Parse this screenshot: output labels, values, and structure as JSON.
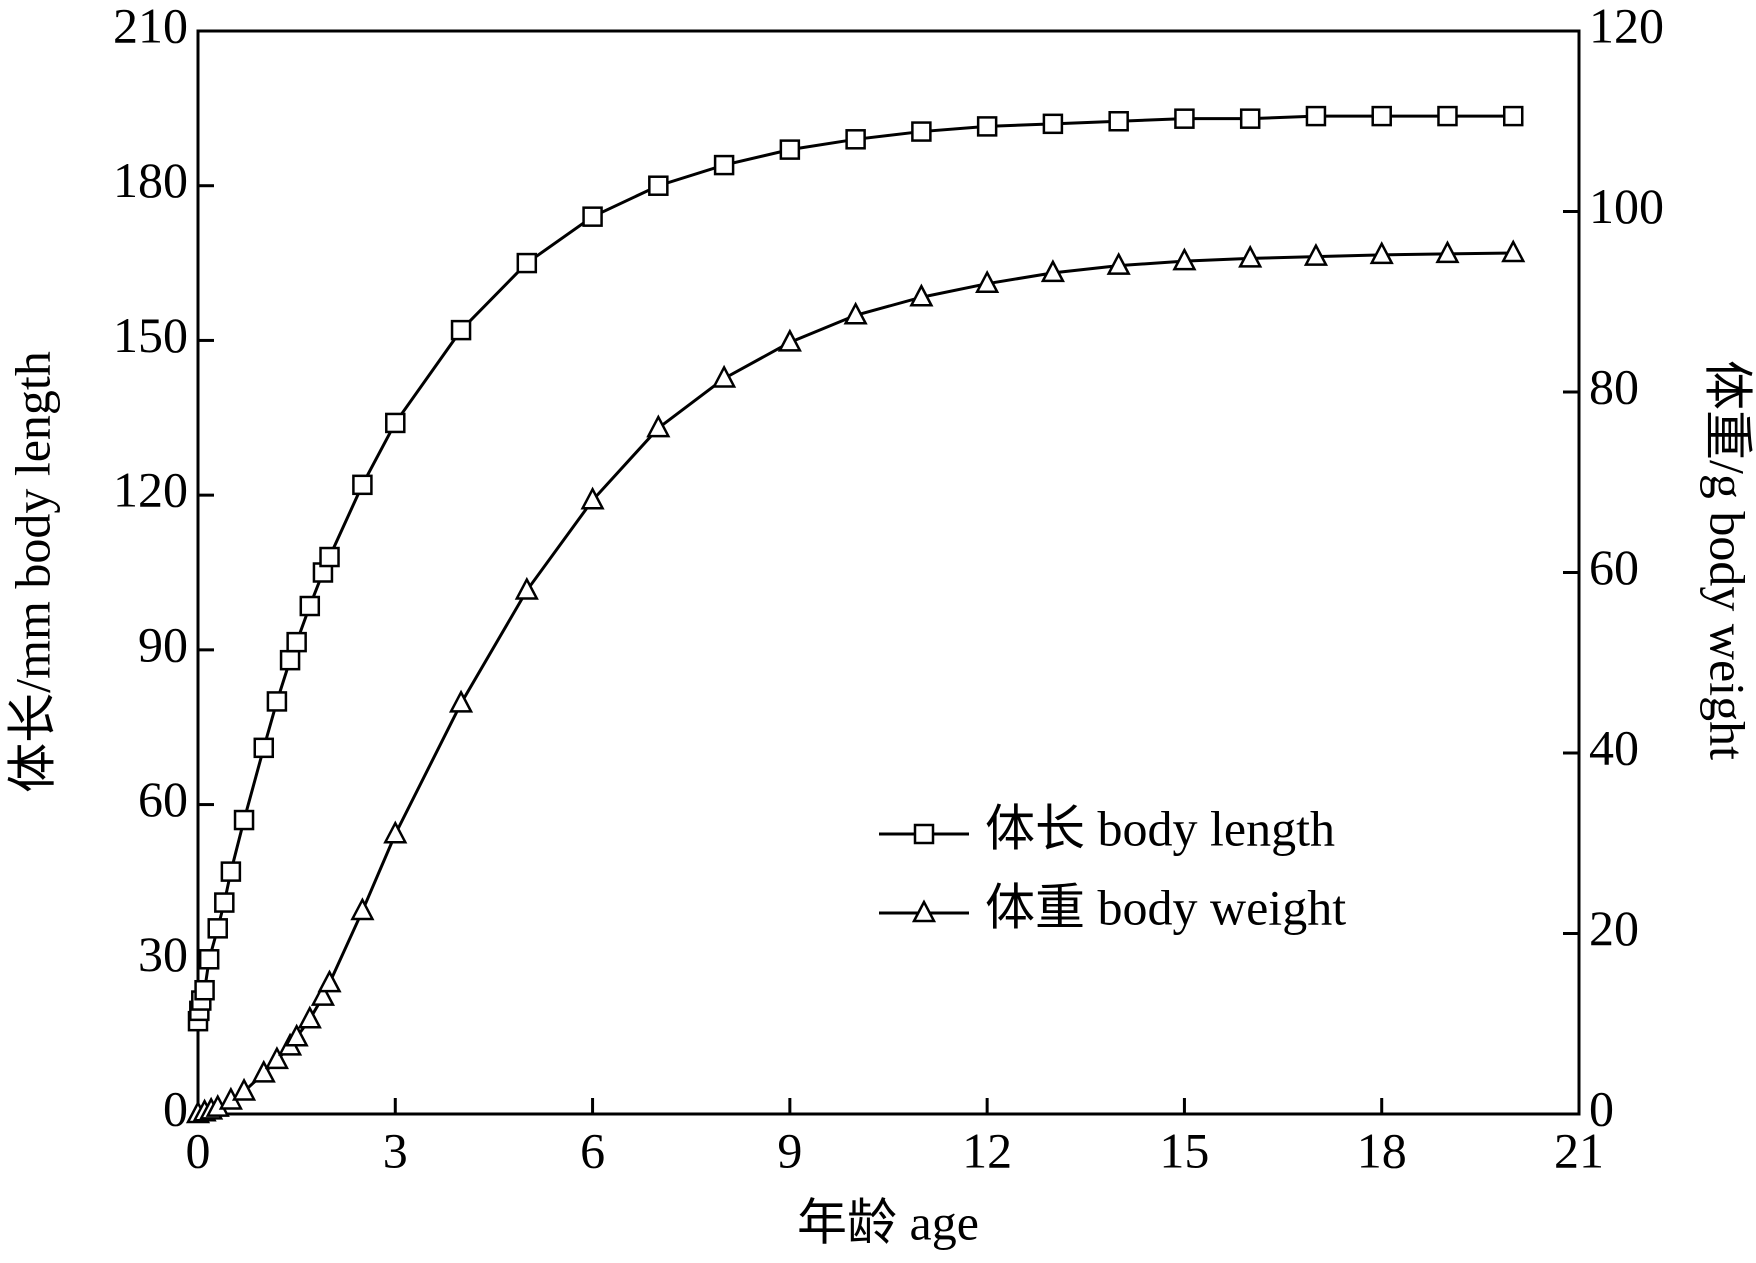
{
  "chart_data": {
    "type": "line",
    "x_label": "年龄 age",
    "y_label": "体长/mm body length",
    "y2_label": "体重/g body weight",
    "xlim": [
      0,
      21
    ],
    "xticks": [
      0,
      3,
      6,
      9,
      12,
      15,
      18,
      21
    ],
    "ylim": [
      0,
      210
    ],
    "yticks": [
      0,
      30,
      60,
      90,
      120,
      150,
      180,
      210
    ],
    "y2lim": [
      0,
      120
    ],
    "y2ticks": [
      0,
      20,
      40,
      60,
      80,
      100,
      120
    ],
    "legend": "lower-right",
    "series": [
      {
        "name": "体长 body length",
        "color": "#000000",
        "marker": "square",
        "x": [
          0,
          0.02,
          0.05,
          0.1,
          0.17,
          0.3,
          0.4,
          0.5,
          0.7,
          1.0,
          1.2,
          1.4,
          1.5,
          1.7,
          1.9,
          2.0,
          2.5,
          3,
          4,
          5,
          6,
          7,
          8,
          9,
          10,
          11,
          12,
          13,
          14,
          15,
          16,
          17,
          18,
          19,
          20
        ],
        "values": [
          18,
          20,
          22,
          24,
          30,
          36,
          41,
          47,
          57,
          71,
          80,
          88,
          91.5,
          98.5,
          105,
          108,
          122,
          134,
          152,
          165,
          174,
          180,
          184,
          187,
          189,
          190.5,
          191.5,
          192,
          192.5,
          193,
          193,
          193.5,
          193.5,
          193.5,
          193.5
        ]
      },
      {
        "name": "体重 body weight",
        "color": "#000000",
        "marker": "triangle",
        "axis": "y2",
        "x": [
          0,
          0.1,
          0.2,
          0.3,
          0.5,
          0.7,
          1.0,
          1.2,
          1.4,
          1.5,
          1.7,
          1.9,
          2.0,
          2.5,
          3,
          4,
          5,
          6,
          7,
          8,
          9,
          10,
          11,
          12,
          13,
          14,
          15,
          16,
          17,
          18,
          19,
          20
        ],
        "values": [
          0,
          0.2,
          0.4,
          0.7,
          1.5,
          2.5,
          4.5,
          6,
          7.5,
          8.5,
          10.5,
          13,
          14.5,
          22.5,
          31,
          45.5,
          58,
          68,
          76,
          81.5,
          85.5,
          88.5,
          90.5,
          92,
          93.2,
          94,
          94.5,
          94.8,
          95,
          95.2,
          95.3,
          95.4
        ]
      }
    ]
  }
}
